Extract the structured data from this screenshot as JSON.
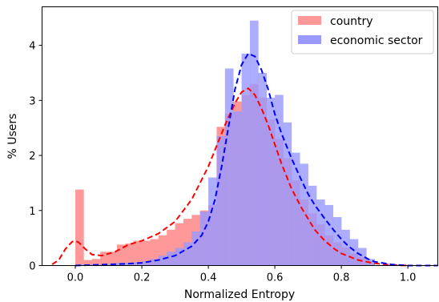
{
  "chart_data": {
    "type": "histogram",
    "title": "",
    "xlabel": "Normalized Entropy",
    "ylabel": "% Users",
    "xlim": [
      -0.1,
      1.09
    ],
    "ylim": [
      0,
      4.7
    ],
    "x_ticks": [
      0.0,
      0.2,
      0.4,
      0.6,
      0.8,
      1.0
    ],
    "x_tick_labels": [
      "0.0",
      "0.2",
      "0.4",
      "0.6",
      "0.8",
      "1.0"
    ],
    "y_ticks": [
      0,
      1,
      2,
      3,
      4
    ],
    "y_tick_labels": [
      "0",
      "1",
      "2",
      "3",
      "4"
    ],
    "grid": false,
    "legend": {
      "position": "top-right"
    },
    "bin_edges": [
      0.0,
      0.025,
      0.05,
      0.075,
      0.1,
      0.125,
      0.15,
      0.175,
      0.2,
      0.225,
      0.25,
      0.275,
      0.3,
      0.325,
      0.35,
      0.375,
      0.4,
      0.425,
      0.45,
      0.475,
      0.5,
      0.525,
      0.55,
      0.575,
      0.6,
      0.625,
      0.65,
      0.675,
      0.7,
      0.725,
      0.75,
      0.775,
      0.8,
      0.825,
      0.85,
      0.875,
      0.9
    ],
    "series": [
      {
        "name": "country",
        "color": "#ff9999",
        "kde_color": "#ff0000",
        "values": [
          1.38,
          0.1,
          0.12,
          0.25,
          0.25,
          0.38,
          0.4,
          0.45,
          0.45,
          0.48,
          0.55,
          0.65,
          0.77,
          0.85,
          0.92,
          1.0,
          1.1,
          2.52,
          2.75,
          2.98,
          3.1,
          3.3,
          3.05,
          2.65,
          2.3,
          1.95,
          1.55,
          1.2,
          0.95,
          0.75,
          0.55,
          0.42,
          0.33,
          0.22,
          0.15,
          0.08
        ],
        "kde_x": [
          -0.07,
          -0.05,
          -0.03,
          -0.01,
          0.0,
          0.01,
          0.03,
          0.05,
          0.08,
          0.12,
          0.16,
          0.2,
          0.25,
          0.3,
          0.35,
          0.4,
          0.45,
          0.48,
          0.5,
          0.52,
          0.54,
          0.56,
          0.58,
          0.6,
          0.62,
          0.65,
          0.68,
          0.7,
          0.72,
          0.75,
          0.78,
          0.8,
          0.85,
          0.9,
          0.95,
          1.0
        ],
        "kde_y": [
          0.02,
          0.1,
          0.3,
          0.43,
          0.45,
          0.42,
          0.3,
          0.2,
          0.18,
          0.25,
          0.38,
          0.45,
          0.58,
          0.8,
          1.2,
          1.8,
          2.55,
          2.95,
          3.15,
          3.22,
          3.1,
          2.85,
          2.55,
          2.2,
          1.85,
          1.4,
          1.05,
          0.85,
          0.65,
          0.45,
          0.3,
          0.22,
          0.1,
          0.04,
          0.01,
          0.0
        ]
      },
      {
        "name": "economic sector",
        "color": "#9999ff",
        "kde_color": "#0000ff",
        "values": [
          0.02,
          0.02,
          0.02,
          0.02,
          0.03,
          0.05,
          0.05,
          0.06,
          0.08,
          0.12,
          0.18,
          0.25,
          0.32,
          0.42,
          0.62,
          0.98,
          1.6,
          2.35,
          3.58,
          2.8,
          3.85,
          4.45,
          3.5,
          3.05,
          3.1,
          2.6,
          2.05,
          1.85,
          1.45,
          1.2,
          1.1,
          0.88,
          0.65,
          0.48,
          0.32,
          0.12
        ],
        "kde_x": [
          0.0,
          0.05,
          0.1,
          0.15,
          0.2,
          0.25,
          0.3,
          0.35,
          0.38,
          0.4,
          0.42,
          0.44,
          0.46,
          0.48,
          0.5,
          0.52,
          0.54,
          0.56,
          0.58,
          0.6,
          0.62,
          0.65,
          0.68,
          0.7,
          0.72,
          0.75,
          0.78,
          0.8,
          0.82,
          0.85,
          0.88,
          0.9,
          0.95,
          1.0,
          1.05,
          1.09
        ],
        "kde_y": [
          0.0,
          0.01,
          0.02,
          0.03,
          0.05,
          0.1,
          0.18,
          0.35,
          0.55,
          0.8,
          1.2,
          1.8,
          2.5,
          3.2,
          3.65,
          3.85,
          3.8,
          3.55,
          3.2,
          2.75,
          2.4,
          1.95,
          1.55,
          1.3,
          1.1,
          0.85,
          0.62,
          0.48,
          0.36,
          0.22,
          0.12,
          0.07,
          0.02,
          0.0,
          0.0,
          0.0
        ]
      }
    ]
  }
}
